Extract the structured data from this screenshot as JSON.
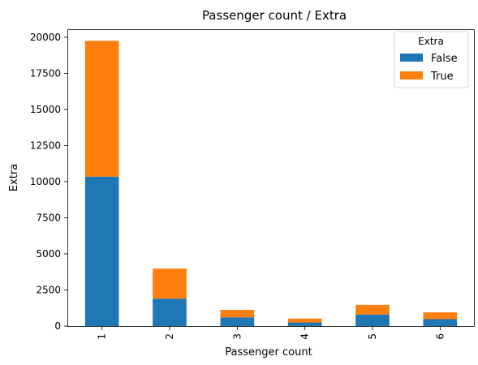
{
  "chart_data": {
    "type": "bar",
    "stacked": true,
    "title": "Passenger count / Extra",
    "xlabel": "Passenger count",
    "ylabel": "Extra",
    "categories": [
      "1",
      "2",
      "3",
      "4",
      "5",
      "6"
    ],
    "series": [
      {
        "name": "False",
        "color": "#1f77b4",
        "values": [
          10350,
          1900,
          600,
          250,
          800,
          480
        ]
      },
      {
        "name": "True",
        "color": "#ff7f0e",
        "values": [
          9400,
          2080,
          520,
          270,
          670,
          470
        ]
      }
    ],
    "ylim": [
      0,
      20500
    ],
    "yticks": [
      0,
      2500,
      5000,
      7500,
      10000,
      12500,
      15000,
      17500,
      20000
    ],
    "ytick_labels": [
      "0",
      "2500",
      "5000",
      "7500",
      "10000",
      "12500",
      "15000",
      "17500",
      "20000"
    ],
    "grid": false,
    "legend": {
      "title": "Extra",
      "placement": "top-right"
    }
  }
}
